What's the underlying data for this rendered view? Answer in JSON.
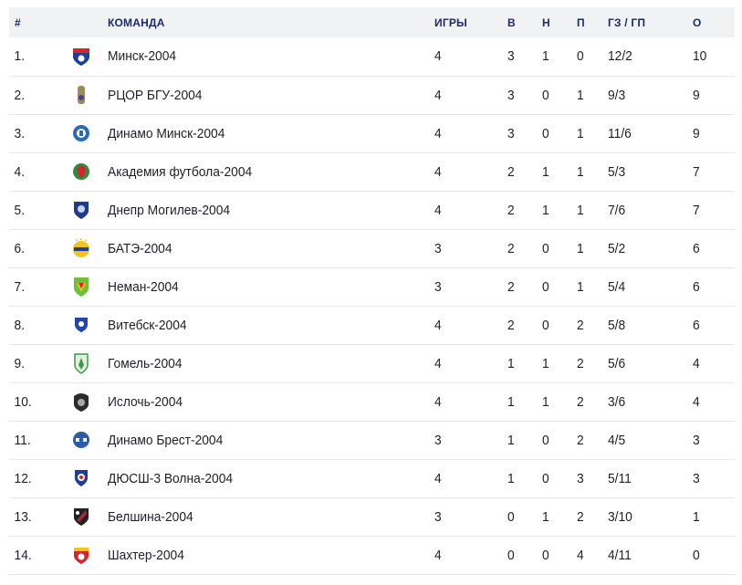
{
  "headers": {
    "pos": "#",
    "team": "КОМАНДА",
    "games": "ИГРЫ",
    "wins": "В",
    "draws": "Н",
    "losses": "П",
    "goals": "ГЗ / ГП",
    "points": "О"
  },
  "rows": [
    {
      "pos": "1.",
      "team": "Минск-2004",
      "games": "4",
      "w": "3",
      "d": "1",
      "l": "0",
      "goals": "12/2",
      "pts": "10",
      "logo": "minsk-crest",
      "logo_colors": [
        "#1d3f9a",
        "#d8232a"
      ]
    },
    {
      "pos": "2.",
      "team": "РЦОР БГУ-2004",
      "games": "4",
      "w": "3",
      "d": "0",
      "l": "1",
      "goals": "9/3",
      "pts": "9",
      "logo": "rcor-bgu-crest",
      "logo_colors": [
        "#9c8c5a",
        "#3b4a8a"
      ]
    },
    {
      "pos": "3.",
      "team": "Динамо Минск-2004",
      "games": "4",
      "w": "3",
      "d": "0",
      "l": "1",
      "goals": "11/6",
      "pts": "9",
      "logo": "dinamo-minsk-crest",
      "logo_colors": [
        "#2a6db5",
        "#ffffff"
      ]
    },
    {
      "pos": "4.",
      "team": "Академия футбола-2004",
      "games": "4",
      "w": "2",
      "d": "1",
      "l": "1",
      "goals": "5/3",
      "pts": "7",
      "logo": "academy-crest",
      "logo_colors": [
        "#2f8a3c",
        "#d8232a"
      ]
    },
    {
      "pos": "5.",
      "team": "Днепр Могилев-2004",
      "games": "4",
      "w": "2",
      "d": "1",
      "l": "1",
      "goals": "7/6",
      "pts": "7",
      "logo": "dnepr-crest",
      "logo_colors": [
        "#1f3b8f",
        "#c9d2ec"
      ]
    },
    {
      "pos": "6.",
      "team": "БАТЭ-2004",
      "games": "3",
      "w": "2",
      "d": "0",
      "l": "1",
      "goals": "5/2",
      "pts": "6",
      "logo": "bate-crest",
      "logo_colors": [
        "#f2c51c",
        "#1d3f9a"
      ]
    },
    {
      "pos": "7.",
      "team": "Неман-2004",
      "games": "3",
      "w": "2",
      "d": "0",
      "l": "1",
      "goals": "5/4",
      "pts": "6",
      "logo": "neman-crest",
      "logo_colors": [
        "#6fbf3a",
        "#f2c51c"
      ]
    },
    {
      "pos": "8.",
      "team": "Витебск-2004",
      "games": "4",
      "w": "2",
      "d": "0",
      "l": "2",
      "goals": "5/8",
      "pts": "6",
      "logo": "vitebsk-crest",
      "logo_colors": [
        "#2148a8",
        "#ffffff"
      ]
    },
    {
      "pos": "9.",
      "team": "Гомель-2004",
      "games": "4",
      "w": "1",
      "d": "1",
      "l": "2",
      "goals": "5/6",
      "pts": "4",
      "logo": "gomel-crest",
      "logo_colors": [
        "#3b9a48",
        "#e4eedd"
      ]
    },
    {
      "pos": "10.",
      "team": "Ислочь-2004",
      "games": "4",
      "w": "1",
      "d": "1",
      "l": "2",
      "goals": "3/6",
      "pts": "4",
      "logo": "isloch-crest",
      "logo_colors": [
        "#2b2b2b",
        "#a8a8a8"
      ]
    },
    {
      "pos": "11.",
      "team": "Динамо Брест-2004",
      "games": "3",
      "w": "1",
      "d": "0",
      "l": "2",
      "goals": "4/5",
      "pts": "3",
      "logo": "dinamo-brest-crest",
      "logo_colors": [
        "#2a5caa",
        "#ffffff"
      ]
    },
    {
      "pos": "12.",
      "team": "ДЮСШ-3 Волна-2004",
      "games": "4",
      "w": "1",
      "d": "0",
      "l": "3",
      "goals": "5/11",
      "pts": "3",
      "logo": "volna-crest",
      "logo_colors": [
        "#1d3f9a",
        "#d8232a"
      ]
    },
    {
      "pos": "13.",
      "team": "Белшина-2004",
      "games": "3",
      "w": "0",
      "d": "1",
      "l": "2",
      "goals": "3/10",
      "pts": "1",
      "logo": "belshina-crest",
      "logo_colors": [
        "#222222",
        "#b0262c"
      ]
    },
    {
      "pos": "14.",
      "team": "Шахтер-2004",
      "games": "4",
      "w": "0",
      "d": "0",
      "l": "4",
      "goals": "4/11",
      "pts": "0",
      "logo": "shakhtar-crest",
      "logo_colors": [
        "#d8232a",
        "#f2c51c"
      ]
    }
  ]
}
